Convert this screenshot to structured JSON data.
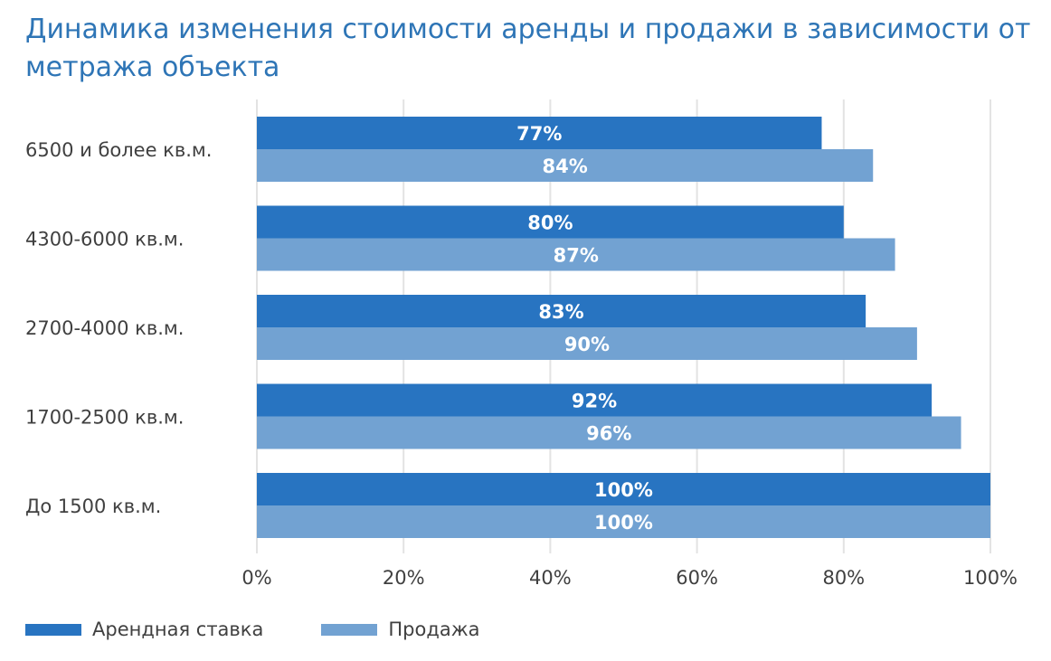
{
  "title": "Динамика изменения стоимости аренды и продажи в зависимости от метража объекта",
  "colors": {
    "title": "#2E75B6",
    "rent": "#2874C1",
    "sale": "#72A2D2",
    "grid": "#E3E3E3",
    "text": "#404040"
  },
  "chart_data": {
    "type": "bar",
    "orientation": "horizontal",
    "title": "Динамика изменения стоимости аренды и продажи в зависимости от метража объекта",
    "categories": [
      "6500 и более кв.м.",
      "4300-6000 кв.м.",
      "2700-4000 кв.м.",
      "1700-2500 кв.м.",
      "До 1500 кв.м."
    ],
    "series": [
      {
        "name": "Арендная ставка",
        "values": [
          77,
          80,
          83,
          92,
          100
        ],
        "labels": [
          "77%",
          "80%",
          "83%",
          "92%",
          "100%"
        ]
      },
      {
        "name": "Продажа",
        "values": [
          84,
          87,
          90,
          96,
          100
        ],
        "labels": [
          "84%",
          "87%",
          "90%",
          "96%",
          "100%"
        ]
      }
    ],
    "xlim": [
      0,
      100
    ],
    "xticks": [
      "0%",
      "20%",
      "40%",
      "60%",
      "80%",
      "100%"
    ],
    "xlabel": "",
    "ylabel": "",
    "grid": true,
    "legend": "bottom-left"
  }
}
